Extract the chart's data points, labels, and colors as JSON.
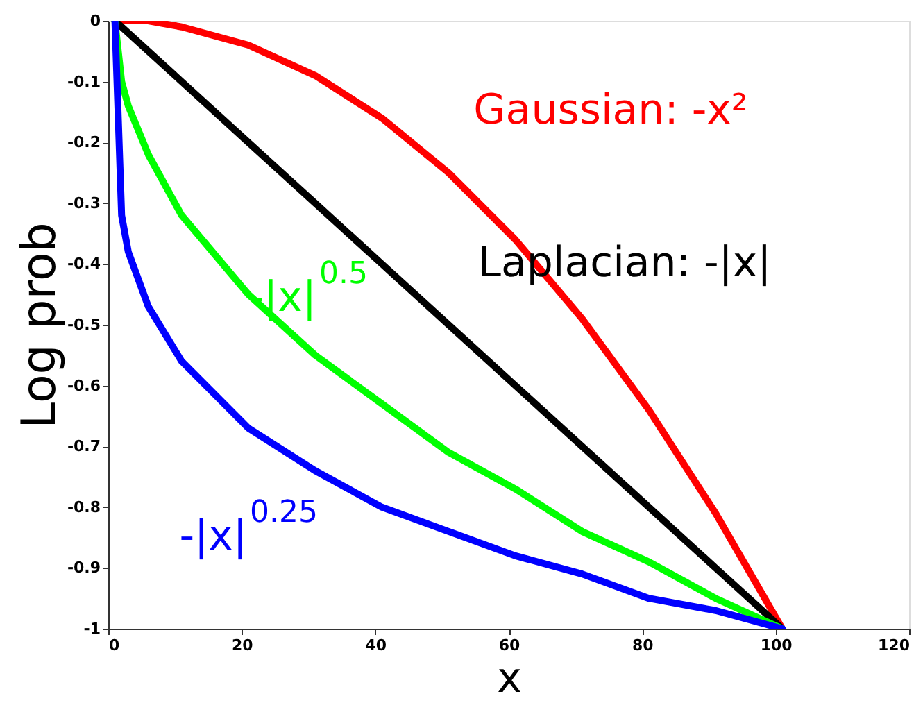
{
  "chart_data": {
    "type": "line",
    "xlabel": "x",
    "ylabel": "Log prob",
    "xlim": [
      0,
      120
    ],
    "xticks": [
      0,
      20,
      40,
      60,
      80,
      100,
      120
    ],
    "ylim": [
      -1,
      0
    ],
    "yticks": [
      0,
      -0.1,
      -0.2,
      -0.3,
      -0.4,
      -0.5,
      -0.6,
      -0.7,
      -0.8,
      -0.9,
      -1
    ],
    "x": [
      1,
      2,
      3,
      6,
      11,
      21,
      31,
      41,
      51,
      61,
      71,
      81,
      91,
      101
    ],
    "series": [
      {
        "name": "Gaussian: -x²",
        "color": "#ff0000",
        "values": [
          0,
          0,
          0,
          0,
          -0.01,
          -0.04,
          -0.09,
          -0.16,
          -0.25,
          -0.36,
          -0.49,
          -0.64,
          -0.81,
          -1
        ]
      },
      {
        "name": "Laplacian: -|x|",
        "color": "#000000",
        "values": [
          0,
          -0.01,
          -0.02,
          -0.05,
          -0.1,
          -0.2,
          -0.3,
          -0.4,
          -0.5,
          -0.6,
          -0.7,
          -0.8,
          -0.9,
          -1
        ]
      },
      {
        "name": "-|x|$^{0.5}$",
        "color": "#00ff00",
        "values": [
          0,
          -0.1,
          -0.14,
          -0.22,
          -0.32,
          -0.45,
          -0.55,
          -0.63,
          -0.71,
          -0.77,
          -0.84,
          -0.89,
          -0.95,
          -1
        ]
      },
      {
        "name": "-|x|$^{0.25}$",
        "color": "#0000ff",
        "values": [
          0,
          -0.32,
          -0.38,
          -0.47,
          -0.56,
          -0.67,
          -0.74,
          -0.8,
          -0.84,
          -0.88,
          -0.91,
          -0.95,
          -0.97,
          -1
        ]
      }
    ],
    "grid": false,
    "marker": "none",
    "line_style": "solid"
  }
}
